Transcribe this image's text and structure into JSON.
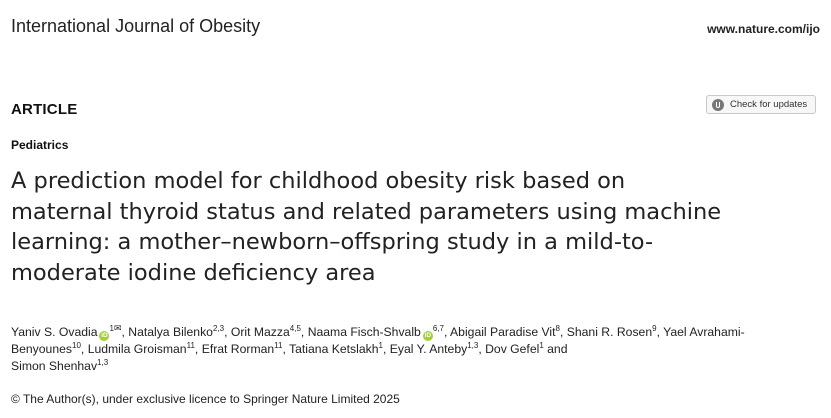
{
  "header": {
    "journal": "International Journal of Obesity",
    "url": "www.nature.com/ijo"
  },
  "article_type": "ARTICLE",
  "check_updates": {
    "label": "Check for updates"
  },
  "section": "Pediatrics",
  "title_lines": [
    "A prediction model for childhood obesity risk based on",
    "maternal thyroid status and related parameters using machine",
    "learning: a mother–newborn–offspring study in a mild-to-",
    "moderate iodine deficiency area"
  ],
  "authors": [
    {
      "name": "Yaniv S. Ovadia",
      "orcid": true,
      "aff": "1",
      "email": true
    },
    {
      "name": "Natalya Bilenko",
      "aff": "2,3"
    },
    {
      "name": "Orit Mazza",
      "aff": "4,5"
    },
    {
      "name": "Naama Fisch-Shvalb",
      "orcid": true,
      "aff": "6,7"
    },
    {
      "name": "Abigail Paradise Vit",
      "aff": "8"
    },
    {
      "name": "Shani R. Rosen",
      "aff": "9"
    },
    {
      "name": "Yael Avrahami-Benyounes",
      "aff": "10"
    },
    {
      "name": "Ludmila Groisman",
      "aff": "11"
    },
    {
      "name": "Efrat Rorman",
      "aff": "11"
    },
    {
      "name": "Tatiana Ketslakh",
      "aff": "1"
    },
    {
      "name": "Eyal Y. Anteby",
      "aff": "1,3"
    },
    {
      "name": "Dov Gefel",
      "aff": "1"
    },
    {
      "name": "Simon Shenhav",
      "aff": "1,3"
    }
  ],
  "orcid_label": "iD",
  "email_symbol": "✉",
  "conjunction": "and",
  "copyright": "© The Author(s), under exclusive licence to Springer Nature Limited 2025"
}
